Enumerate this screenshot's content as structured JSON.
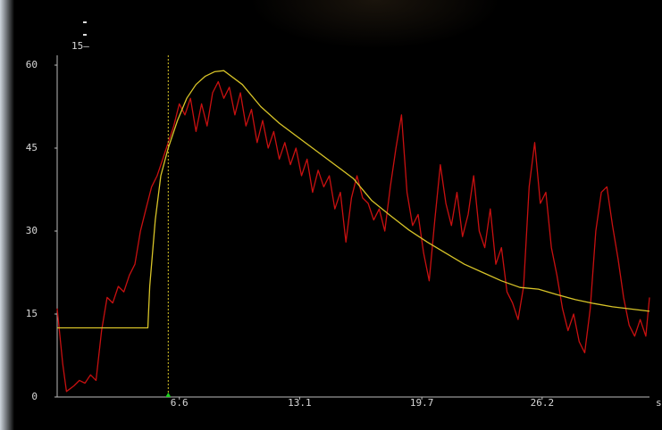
{
  "chart_data": {
    "type": "line",
    "header_label": "15—",
    "x_label": "s",
    "xlim": [
      0,
      32
    ],
    "xticks": [
      6.6,
      13.1,
      19.7,
      26.2
    ],
    "ylim": [
      0,
      60
    ],
    "yticks": [
      0,
      15,
      30,
      45,
      60
    ],
    "marker_x": 6,
    "series": [
      {
        "color": "#c81010",
        "x": [
          0,
          0.3,
          0.5,
          0.9,
          1.2,
          1.5,
          1.8,
          2.1,
          2.4,
          2.7,
          3.0,
          3.3,
          3.6,
          3.9,
          4.2,
          4.5,
          4.8,
          5.1,
          5.4,
          5.7,
          6.0,
          6.3,
          6.6,
          6.9,
          7.2,
          7.5,
          7.8,
          8.1,
          8.4,
          8.7,
          9.0,
          9.3,
          9.6,
          9.9,
          10.2,
          10.5,
          10.8,
          11.1,
          11.4,
          11.7,
          12.0,
          12.3,
          12.6,
          12.9,
          13.2,
          13.5,
          13.8,
          14.1,
          14.4,
          14.7,
          15.0,
          15.3,
          15.6,
          15.9,
          16.2,
          16.5,
          16.8,
          17.1,
          17.4,
          17.7,
          18.0,
          18.3,
          18.6,
          18.9,
          19.2,
          19.5,
          19.8,
          20.1,
          20.4,
          20.7,
          21.0,
          21.3,
          21.6,
          21.9,
          22.2,
          22.5,
          22.8,
          23.1,
          23.4,
          23.7,
          24.0,
          24.3,
          24.6,
          24.9,
          25.2,
          25.5,
          25.8,
          26.1,
          26.4,
          26.7,
          27.0,
          27.3,
          27.6,
          27.9,
          28.2,
          28.5,
          28.8,
          29.1,
          29.4,
          29.7,
          30.0,
          30.3,
          30.6,
          30.9,
          31.2,
          31.5,
          31.8,
          32.0
        ],
        "values": [
          16,
          6,
          1,
          2,
          3,
          2.5,
          4,
          3,
          12,
          18,
          17,
          20,
          19,
          22,
          24,
          30,
          34,
          38,
          40,
          43,
          46,
          49,
          53,
          51,
          54,
          48,
          53,
          49,
          55,
          57,
          54,
          56,
          51,
          55,
          49,
          52,
          46,
          50,
          45,
          48,
          43,
          46,
          42,
          45,
          40,
          43,
          37,
          41,
          38,
          40,
          34,
          37,
          28,
          36,
          40,
          36,
          35,
          32,
          34,
          30,
          38,
          45,
          51,
          37,
          31,
          33,
          26,
          21,
          32,
          42,
          35,
          31,
          37,
          29,
          33,
          40,
          30,
          27,
          34,
          24,
          27,
          19,
          17,
          14,
          20,
          38,
          46,
          35,
          37,
          27,
          22,
          16,
          12,
          15,
          10,
          8,
          16,
          30,
          37,
          38,
          31,
          25,
          18,
          13,
          11,
          14,
          11,
          18
        ]
      },
      {
        "color": "#d8c428",
        "x": [
          0,
          4.9,
          5.0,
          5.3,
          5.6,
          6.0,
          6.5,
          7.0,
          7.5,
          8.0,
          8.5,
          9.0,
          10,
          11,
          12,
          13,
          14,
          15,
          16,
          17,
          18,
          19,
          20,
          21,
          22,
          23,
          24,
          25,
          26,
          27,
          28,
          29,
          30,
          31,
          32
        ],
        "values": [
          12.5,
          12.5,
          20,
          32,
          40,
          45,
          50,
          54,
          56.5,
          58,
          58.8,
          59,
          56.5,
          52.5,
          49.5,
          47,
          44.5,
          42,
          39.5,
          35.5,
          32.8,
          30.2,
          28,
          26,
          24,
          22.5,
          21,
          19.8,
          19.5,
          18.5,
          17.6,
          16.9,
          16.3,
          15.9,
          15.5
        ]
      }
    ]
  }
}
